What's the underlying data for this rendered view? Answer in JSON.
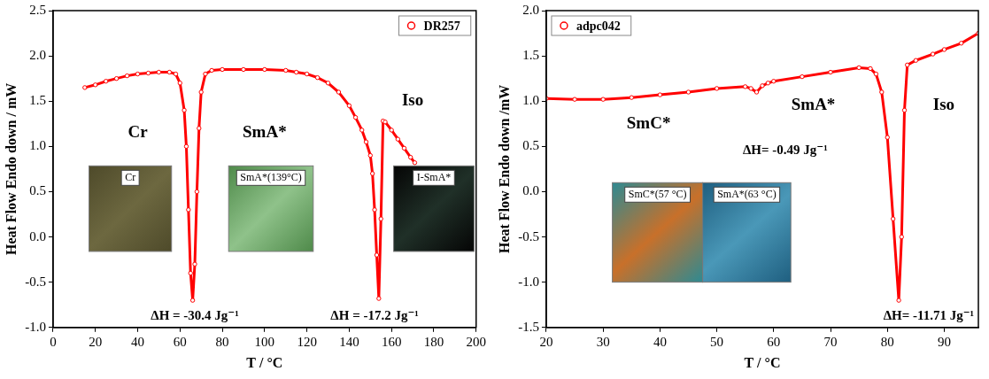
{
  "chart_data": [
    {
      "type": "line",
      "x_label": "T / °C",
      "y_label": "Heat Flow Endo down / mW",
      "x": [
        15,
        20,
        25,
        30,
        35,
        40,
        45,
        50,
        55,
        58,
        60,
        62,
        63,
        64,
        65,
        66,
        67,
        68,
        69,
        70,
        72,
        75,
        80,
        90,
        100,
        110,
        115,
        120,
        125,
        130,
        135,
        140,
        143,
        146,
        148,
        150,
        151,
        152,
        153,
        154,
        155,
        156,
        157,
        160,
        163,
        166,
        169,
        171
      ],
      "series": [
        {
          "name": "DR257",
          "color": "#ff0000",
          "marker": "circle",
          "values": [
            1.65,
            1.68,
            1.72,
            1.75,
            1.78,
            1.8,
            1.81,
            1.82,
            1.82,
            1.8,
            1.7,
            1.4,
            1.0,
            0.3,
            -0.4,
            -0.7,
            -0.3,
            0.5,
            1.2,
            1.6,
            1.8,
            1.84,
            1.85,
            1.85,
            1.85,
            1.84,
            1.82,
            1.8,
            1.76,
            1.7,
            1.6,
            1.45,
            1.32,
            1.18,
            1.05,
            0.9,
            0.7,
            0.3,
            -0.2,
            -0.68,
            0.2,
            1.28,
            1.27,
            1.18,
            1.08,
            0.98,
            0.88,
            0.82
          ]
        }
      ],
      "xlim": [
        0,
        200
      ],
      "xticks": [
        0,
        20,
        40,
        60,
        80,
        100,
        120,
        140,
        160,
        180,
        200
      ],
      "ylim": [
        -1,
        2.5
      ],
      "yticks": [
        {
          "value": -1,
          "label": "-1.0"
        },
        -0.5,
        {
          "value": 0,
          "label": "0.0"
        },
        0.5,
        {
          "value": 1,
          "label": "1.0"
        },
        1.5,
        {
          "value": 2,
          "label": "2.0"
        },
        2.5
      ],
      "grid": false,
      "legend": "upper right",
      "phase_labels": [
        "Cr",
        "SmA*",
        "Iso"
      ],
      "annotations": [
        "ΔH = -30.4 Jg⁻¹",
        "ΔH = -17.2 Jg⁻¹"
      ],
      "insets": [
        "Cr",
        "SmA*(139°C)",
        "I-SmA*"
      ]
    },
    {
      "type": "line",
      "x_label": "T / °C",
      "y_label": "Heat Flow Endo down /mW",
      "x": [
        20,
        25,
        30,
        35,
        40,
        45,
        50,
        55,
        56,
        57,
        58,
        59,
        60,
        65,
        70,
        75,
        77,
        78,
        79,
        80,
        81,
        82,
        82.5,
        83,
        83.5,
        85,
        88,
        90,
        93,
        96
      ],
      "series": [
        {
          "name": "adpc042",
          "color": "#ff0000",
          "marker": "circle",
          "values": [
            1.03,
            1.02,
            1.02,
            1.04,
            1.07,
            1.1,
            1.14,
            1.16,
            1.14,
            1.1,
            1.17,
            1.2,
            1.22,
            1.27,
            1.32,
            1.37,
            1.36,
            1.3,
            1.1,
            0.6,
            -0.3,
            -1.2,
            -0.5,
            0.9,
            1.4,
            1.45,
            1.52,
            1.57,
            1.64,
            1.75
          ]
        }
      ],
      "xlim": [
        20,
        96
      ],
      "xticks": [
        20,
        30,
        40,
        50,
        60,
        70,
        80,
        90
      ],
      "ylim": [
        -1.5,
        2
      ],
      "yticks": [
        -1.5,
        {
          "value": -1,
          "label": "-1.0"
        },
        -0.5,
        {
          "value": 0,
          "label": "0.0"
        },
        0.5,
        {
          "value": 1,
          "label": "1.0"
        },
        1.5,
        {
          "value": 2,
          "label": "2.0"
        }
      ],
      "grid": false,
      "legend": "upper left",
      "phase_labels": [
        "SmC*",
        "SmA*",
        "Iso"
      ],
      "annotations": [
        "ΔH= -0.49 Jg⁻¹",
        "ΔH= -11.71 Jg⁻¹"
      ],
      "insets": [
        "SmC*(57 °C)",
        "SmA*(63 °C)"
      ]
    }
  ]
}
